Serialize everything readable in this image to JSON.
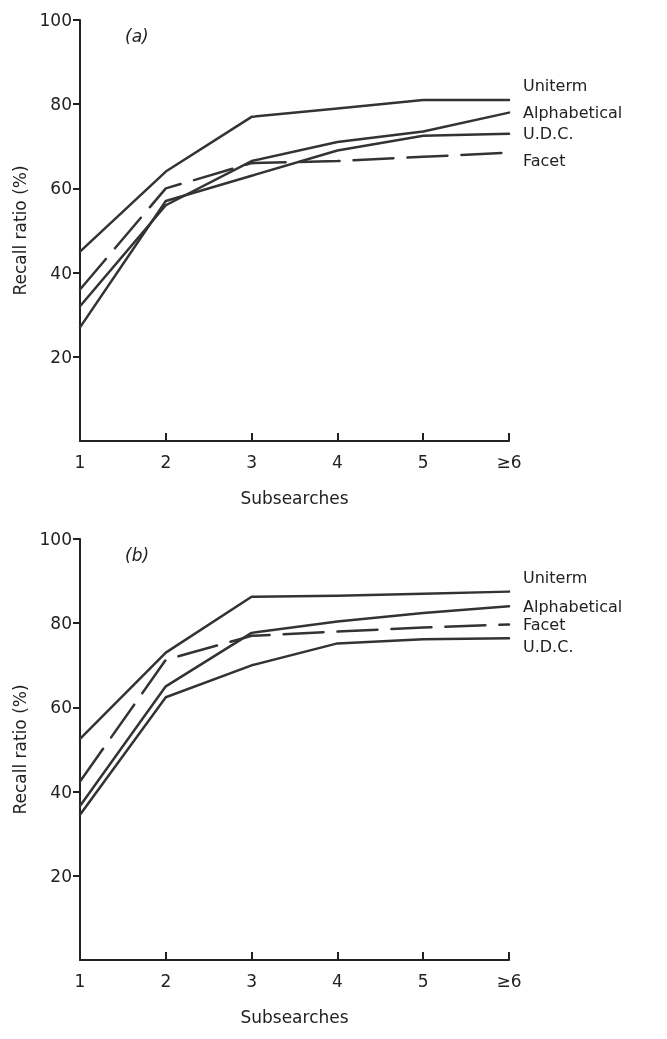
{
  "chart_data": [
    {
      "type": "line",
      "title": "(a)",
      "xlabel": "Subsearches",
      "ylabel": "Recall ratio (%)",
      "categories": [
        "1",
        "2",
        "3",
        "4",
        "5",
        "≥6"
      ],
      "ylim": [
        0,
        100
      ],
      "yticks": [
        20,
        40,
        60,
        80,
        100
      ],
      "grid": false,
      "legend": false,
      "marker": "none",
      "series": [
        {
          "name": "Uniterm",
          "color": "#333333",
          "values": [
            45,
            64,
            77,
            79,
            81,
            81
          ]
        },
        {
          "name": "Alphabetical",
          "color": "#333333",
          "values": [
            32,
            56,
            66.5,
            71,
            73.5,
            78
          ]
        },
        {
          "name": "U.D.C.",
          "color": "#333333",
          "values": [
            27,
            57,
            63,
            69,
            72.5,
            73
          ]
        },
        {
          "name": "Facet",
          "color": "#333333",
          "line_style": "dashed",
          "values": [
            36,
            60,
            66,
            66.5,
            67.5,
            68.5
          ]
        }
      ]
    },
    {
      "type": "line",
      "title": "(b)",
      "xlabel": "Subsearches",
      "ylabel": "Recall ratio (%)",
      "categories": [
        "1",
        "2",
        "3",
        "4",
        "5",
        "≥6"
      ],
      "ylim": [
        0,
        100
      ],
      "yticks": [
        20,
        40,
        60,
        80,
        100
      ],
      "grid": false,
      "legend": false,
      "marker": "none",
      "series": [
        {
          "name": "Uniterm",
          "color": "#333333",
          "values": [
            52.5,
            73,
            86.3,
            86.5,
            87,
            87.5
          ]
        },
        {
          "name": "Alphabetical",
          "color": "#333333",
          "values": [
            36.6,
            65,
            77.7,
            80.4,
            82.4,
            84
          ]
        },
        {
          "name": "Facet",
          "color": "#333333",
          "line_style": "dashed",
          "values": [
            42.4,
            71.3,
            77,
            78,
            79,
            79.7
          ]
        },
        {
          "name": "U.D.C.",
          "color": "#333333",
          "values": [
            34.5,
            62.4,
            70,
            75.2,
            76.2,
            76.4
          ]
        }
      ]
    }
  ]
}
